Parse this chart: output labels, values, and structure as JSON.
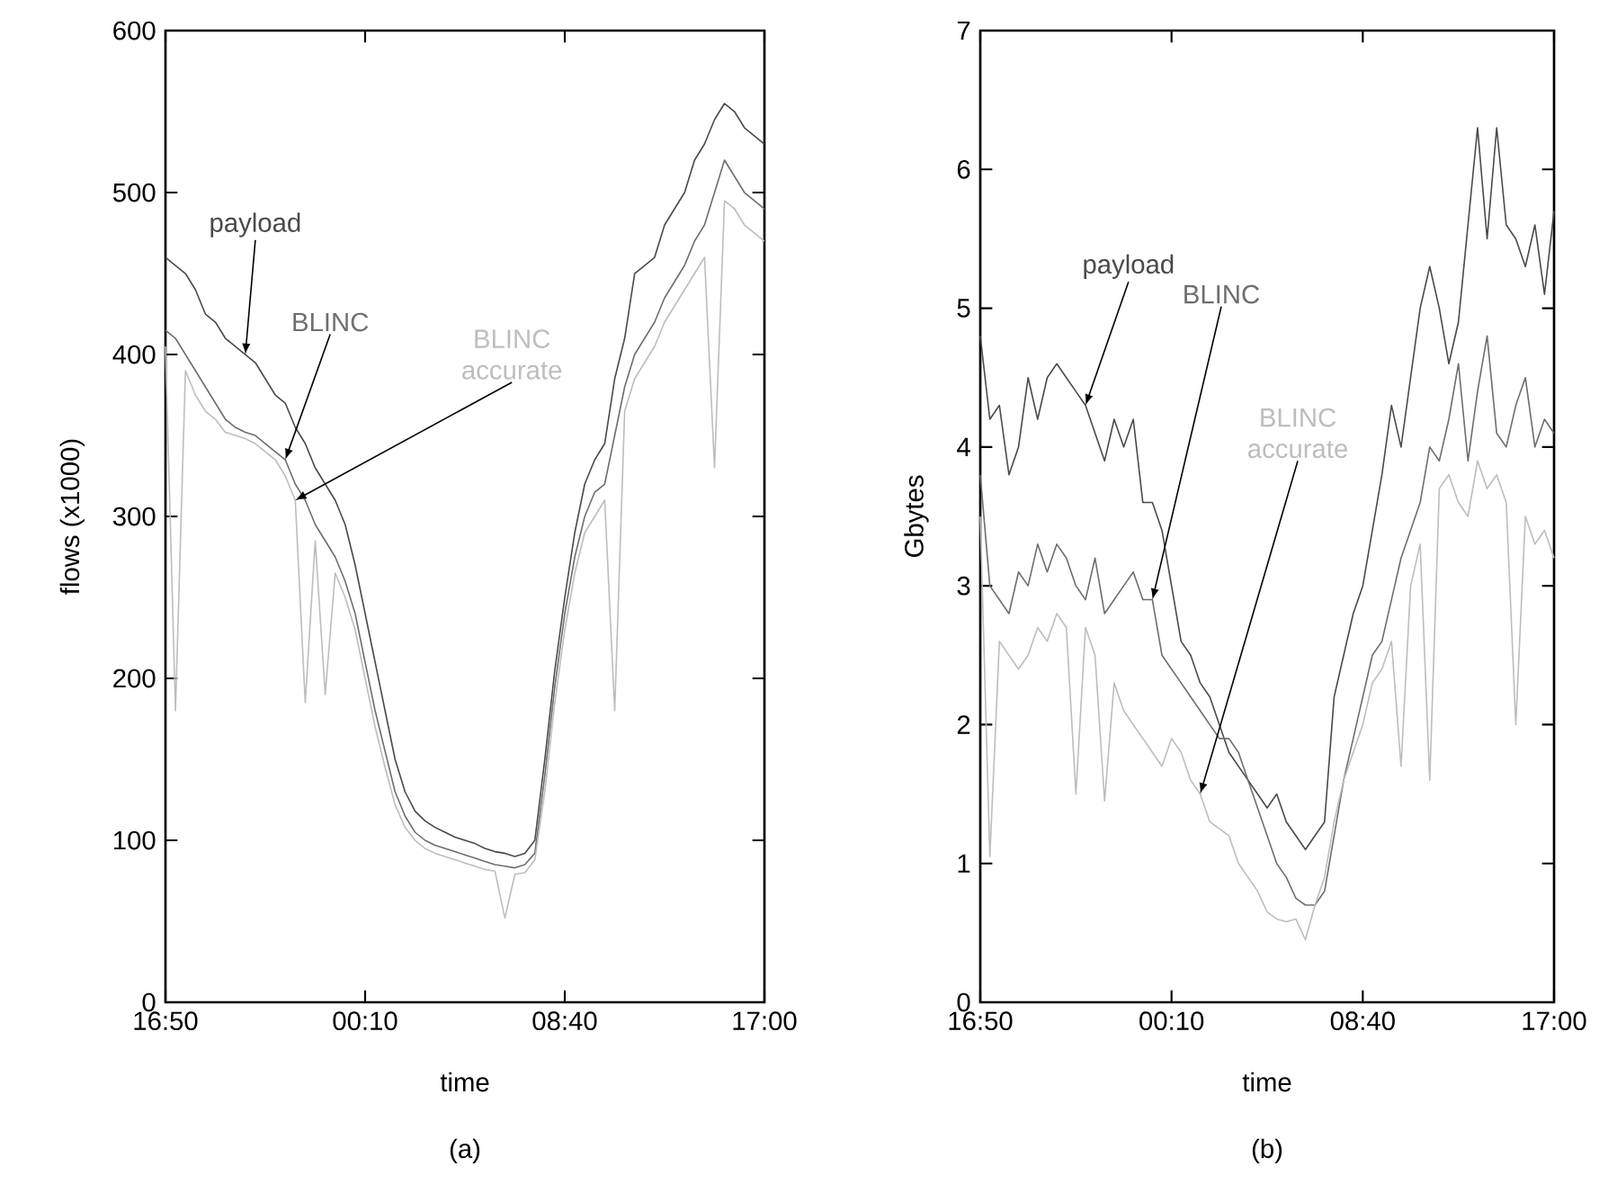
{
  "chart_data": [
    {
      "type": "line",
      "xlabel": "time",
      "ylabel": "flows (x1000)",
      "annotations": [
        "(a)"
      ],
      "categories": [
        "16:50",
        null,
        null,
        null,
        null,
        null,
        null,
        null,
        null,
        null,
        null,
        null,
        null,
        null,
        null,
        null,
        null,
        null,
        null,
        null,
        "00:10",
        null,
        null,
        null,
        null,
        null,
        null,
        null,
        null,
        null,
        null,
        null,
        null,
        null,
        null,
        null,
        null,
        null,
        null,
        null,
        "08:40",
        null,
        null,
        null,
        null,
        null,
        null,
        null,
        null,
        null,
        null,
        null,
        null,
        null,
        null,
        null,
        null,
        null,
        null,
        null,
        "17:00"
      ],
      "ylim": [
        0,
        600
      ],
      "yticks": [
        0,
        100,
        200,
        300,
        400,
        500,
        600
      ],
      "grid": false,
      "legend": false,
      "series": [
        {
          "name": "payload",
          "color": "#4a4a4a",
          "values": [
            460,
            455,
            450,
            440,
            425,
            420,
            410,
            405,
            400,
            395,
            385,
            375,
            370,
            355,
            345,
            330,
            320,
            310,
            295,
            270,
            240,
            210,
            180,
            150,
            130,
            118,
            112,
            108,
            105,
            102,
            100,
            98,
            95,
            93,
            92,
            90,
            92,
            100,
            150,
            205,
            250,
            290,
            320,
            335,
            345,
            385,
            410,
            450,
            455,
            460,
            480,
            490,
            500,
            520,
            530,
            545,
            555,
            550,
            540,
            535,
            530
          ]
        },
        {
          "name": "BLINC",
          "color": "#6e6e6e",
          "values": [
            415,
            410,
            400,
            390,
            380,
            370,
            360,
            355,
            352,
            350,
            345,
            340,
            335,
            320,
            310,
            295,
            285,
            275,
            260,
            240,
            210,
            180,
            155,
            130,
            115,
            105,
            100,
            97,
            95,
            93,
            91,
            89,
            87,
            85,
            84,
            83,
            85,
            92,
            140,
            195,
            240,
            275,
            300,
            315,
            320,
            350,
            380,
            400,
            410,
            420,
            435,
            445,
            455,
            470,
            480,
            500,
            520,
            510,
            500,
            495,
            490
          ]
        },
        {
          "name": "BLINC accurate",
          "color": "#bdbdbd",
          "values": [
            405,
            180,
            390,
            375,
            365,
            360,
            352,
            350,
            348,
            345,
            340,
            335,
            325,
            310,
            185,
            285,
            190,
            265,
            250,
            230,
            200,
            170,
            145,
            122,
            108,
            100,
            95,
            92,
            90,
            88,
            86,
            84,
            82,
            81,
            52,
            79,
            80,
            88,
            130,
            185,
            230,
            265,
            290,
            300,
            310,
            180,
            365,
            385,
            395,
            405,
            420,
            430,
            440,
            450,
            460,
            330,
            495,
            490,
            480,
            475,
            470
          ]
        }
      ]
    },
    {
      "type": "line",
      "xlabel": "time",
      "ylabel": "Gbytes",
      "annotations": [
        "(b)"
      ],
      "categories": [
        "16:50",
        null,
        null,
        null,
        null,
        null,
        null,
        null,
        null,
        null,
        null,
        null,
        null,
        null,
        null,
        null,
        null,
        null,
        null,
        null,
        "00:10",
        null,
        null,
        null,
        null,
        null,
        null,
        null,
        null,
        null,
        null,
        null,
        null,
        null,
        null,
        null,
        null,
        null,
        null,
        null,
        "08:40",
        null,
        null,
        null,
        null,
        null,
        null,
        null,
        null,
        null,
        null,
        null,
        null,
        null,
        null,
        null,
        null,
        null,
        null,
        null,
        "17:00"
      ],
      "ylim": [
        0,
        7
      ],
      "yticks": [
        0,
        1,
        2,
        3,
        4,
        5,
        6,
        7
      ],
      "grid": false,
      "legend": false,
      "series": [
        {
          "name": "payload",
          "color": "#4a4a4a",
          "values": [
            4.8,
            4.2,
            4.3,
            3.8,
            4.0,
            4.5,
            4.2,
            4.5,
            4.6,
            4.5,
            4.4,
            4.3,
            4.1,
            3.9,
            4.2,
            4.0,
            4.2,
            3.6,
            3.6,
            3.4,
            3.0,
            2.6,
            2.5,
            2.3,
            2.2,
            2.0,
            1.8,
            1.7,
            1.6,
            1.5,
            1.4,
            1.5,
            1.3,
            1.2,
            1.1,
            1.2,
            1.3,
            2.2,
            2.5,
            2.8,
            3.0,
            3.4,
            3.8,
            4.3,
            4.0,
            4.5,
            5.0,
            5.3,
            5.0,
            4.6,
            4.9,
            5.6,
            6.3,
            5.5,
            6.3,
            5.6,
            5.5,
            5.3,
            5.6,
            5.1,
            5.7
          ]
        },
        {
          "name": "BLINC",
          "color": "#6e6e6e",
          "values": [
            3.8,
            3.0,
            2.9,
            2.8,
            3.1,
            3.0,
            3.3,
            3.1,
            3.3,
            3.2,
            3.0,
            2.9,
            3.2,
            2.8,
            2.9,
            3.0,
            3.1,
            2.9,
            2.9,
            2.5,
            2.4,
            2.3,
            2.2,
            2.1,
            2.0,
            1.9,
            1.9,
            1.8,
            1.6,
            1.4,
            1.2,
            1.0,
            0.9,
            0.75,
            0.7,
            0.7,
            0.8,
            1.2,
            1.6,
            1.9,
            2.2,
            2.5,
            2.6,
            2.9,
            3.2,
            3.4,
            3.6,
            4.0,
            3.9,
            4.2,
            4.6,
            3.9,
            4.4,
            4.8,
            4.1,
            4.0,
            4.3,
            4.5,
            4.0,
            4.2,
            4.1
          ]
        },
        {
          "name": "BLINC accurate",
          "color": "#bdbdbd",
          "values": [
            3.5,
            1.05,
            2.6,
            2.5,
            2.4,
            2.5,
            2.7,
            2.6,
            2.8,
            2.7,
            1.5,
            2.7,
            2.5,
            1.45,
            2.3,
            2.1,
            2.0,
            1.9,
            1.8,
            1.7,
            1.9,
            1.8,
            1.6,
            1.5,
            1.3,
            1.25,
            1.2,
            1.0,
            0.9,
            0.8,
            0.65,
            0.6,
            0.58,
            0.6,
            0.45,
            0.7,
            0.9,
            1.3,
            1.6,
            1.8,
            2.0,
            2.3,
            2.4,
            2.6,
            1.7,
            3.0,
            3.3,
            1.6,
            3.7,
            3.8,
            3.6,
            3.5,
            3.9,
            3.7,
            3.8,
            3.6,
            2.0,
            3.5,
            3.3,
            3.4,
            3.2
          ]
        }
      ]
    }
  ]
}
